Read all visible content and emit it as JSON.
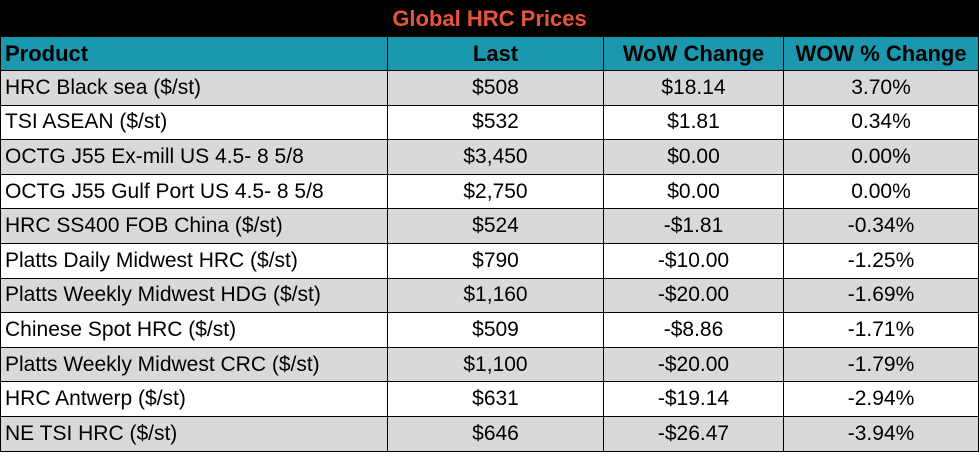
{
  "colors": {
    "title_background": "#000000",
    "title_text": "#e8553a",
    "header_background": "#1b98ad",
    "alt_row_background": "#d9d9d9",
    "row_background": "#ffffff"
  },
  "chart_data": {
    "type": "table",
    "title": "Global HRC Prices",
    "columns": [
      "Product",
      "Last",
      "WoW Change",
      "WOW % Change"
    ],
    "rows": [
      [
        "HRC Black sea ($/st)",
        "$508",
        "$18.14",
        "3.70%"
      ],
      [
        "TSI ASEAN ($/st)",
        "$532",
        "$1.81",
        "0.34%"
      ],
      [
        "OCTG J55 Ex-mill US 4.5- 8 5/8",
        "$3,450",
        "$0.00",
        "0.00%"
      ],
      [
        "OCTG J55 Gulf Port US 4.5- 8 5/8",
        "$2,750",
        "$0.00",
        "0.00%"
      ],
      [
        "HRC SS400 FOB China ($/st)",
        "$524",
        "-$1.81",
        "-0.34%"
      ],
      [
        "Platts Daily Midwest HRC ($/st)",
        "$790",
        "-$10.00",
        "-1.25%"
      ],
      [
        "Platts Weekly Midwest HDG ($/st)",
        "$1,160",
        "-$20.00",
        "-1.69%"
      ],
      [
        "Chinese Spot HRC ($/st)",
        "$509",
        "-$8.86",
        "-1.71%"
      ],
      [
        "Platts Weekly Midwest CRC ($/st)",
        "$1,100",
        "-$20.00",
        "-1.79%"
      ],
      [
        "HRC Antwerp ($/st)",
        "$631",
        "-$19.14",
        "-2.94%"
      ],
      [
        "NE TSI HRC ($/st)",
        "$646",
        "-$26.47",
        "-3.94%"
      ]
    ]
  }
}
